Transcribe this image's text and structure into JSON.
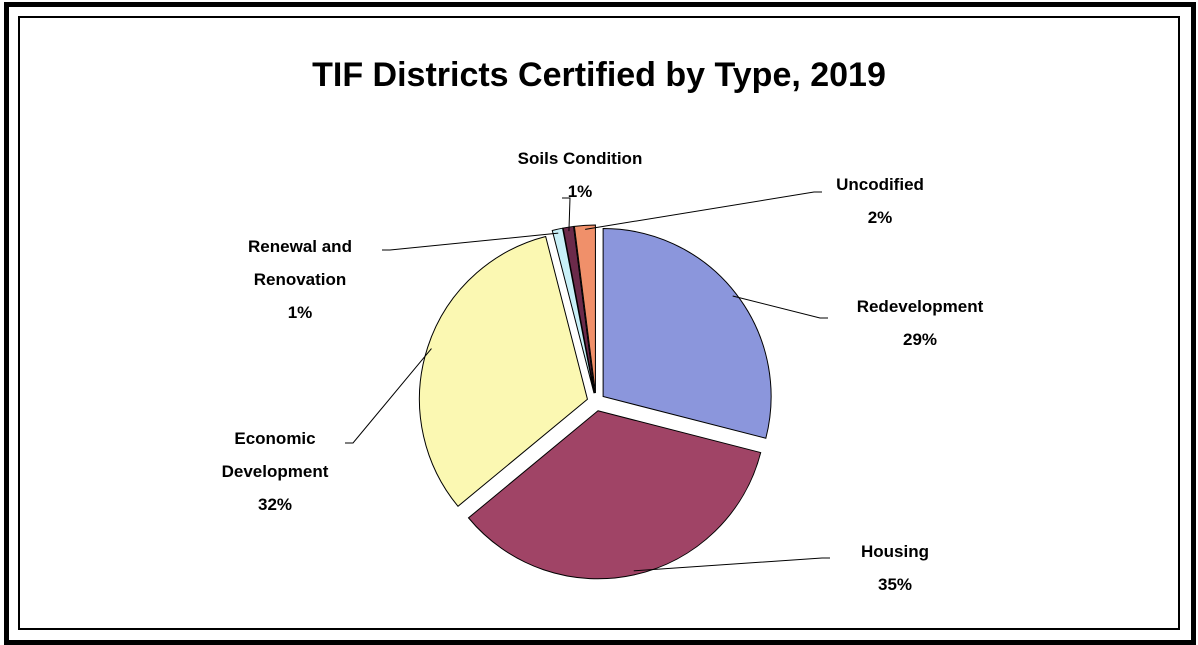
{
  "chart_data": {
    "type": "pie",
    "title": "TIF Districts Certified by Type, 2019",
    "categories": [
      "Redevelopment",
      "Housing",
      "Economic Development",
      "Renewal and Renovation",
      "Soils Condition",
      "Uncodified"
    ],
    "values": [
      29,
      35,
      32,
      1,
      1,
      2
    ],
    "value_labels": [
      "29%",
      "35%",
      "32%",
      "1%",
      "1%",
      "2%"
    ],
    "colors": [
      "#8b96dc",
      "#a04466",
      "#fbf8b2",
      "#c8f0f8",
      "#6b2a4a",
      "#f0906a"
    ]
  }
}
